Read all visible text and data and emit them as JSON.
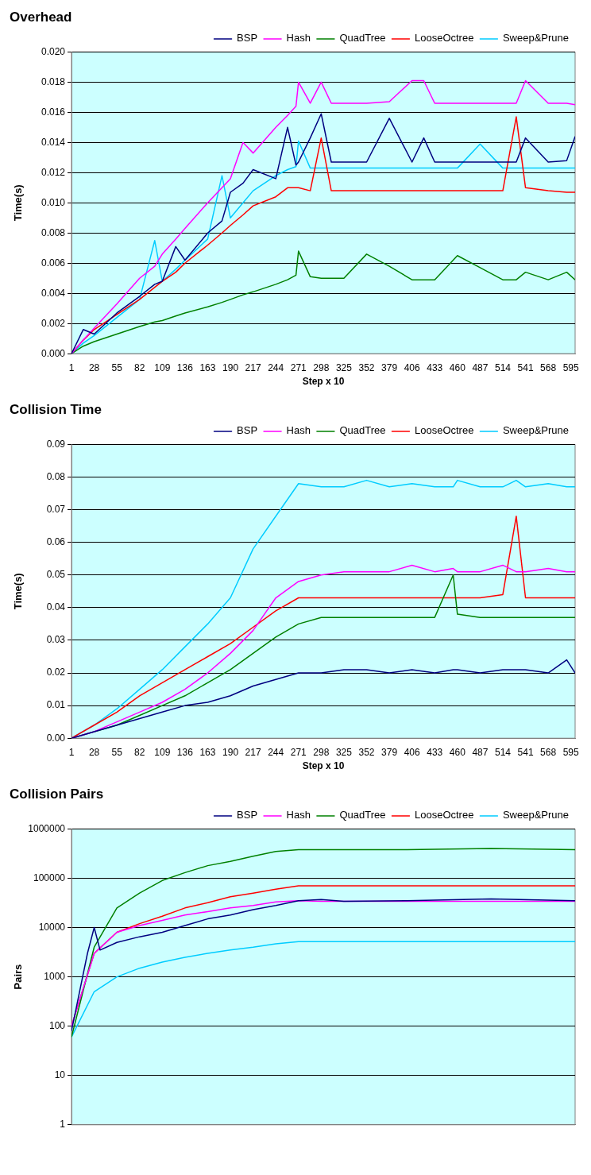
{
  "chart_data": [
    {
      "type": "line",
      "title": "Overhead",
      "xlabel": "Step x 10",
      "ylabel": "Time(s)",
      "legend": "top",
      "grid": "y",
      "marker": "none",
      "x": [
        1,
        15,
        28,
        55,
        82,
        100,
        109,
        125,
        136,
        163,
        180,
        190,
        205,
        217,
        244,
        258,
        268,
        271,
        285,
        298,
        310,
        325,
        352,
        379,
        406,
        420,
        433,
        460,
        487,
        514,
        530,
        541,
        568,
        590,
        600
      ],
      "xlim": [
        1,
        600
      ],
      "xticks": [
        1,
        28,
        55,
        82,
        109,
        136,
        163,
        190,
        217,
        244,
        271,
        298,
        325,
        352,
        379,
        406,
        433,
        460,
        487,
        514,
        541,
        568,
        595
      ],
      "ylim": [
        0,
        0.02
      ],
      "yticks": [
        {
          "value": 0,
          "label": "0.000"
        },
        {
          "value": 0.002,
          "label": "0.002"
        },
        {
          "value": 0.004,
          "label": "0.004"
        },
        {
          "value": 0.006,
          "label": "0.006"
        },
        {
          "value": 0.008,
          "label": "0.008"
        },
        {
          "value": 0.01,
          "label": "0.010"
        },
        {
          "value": 0.012,
          "label": "0.012"
        },
        {
          "value": 0.014,
          "label": "0.014"
        },
        {
          "value": 0.016,
          "label": "0.016"
        },
        {
          "value": 0.018,
          "label": "0.018"
        },
        {
          "value": 0.02,
          "label": "0.020"
        }
      ],
      "series": [
        {
          "name": "BSP",
          "color": "#000080",
          "values": [
            0,
            0.0016,
            0.0013,
            0.0027,
            0.0038,
            0.0046,
            0.0048,
            0.0071,
            0.0062,
            0.008,
            0.0088,
            0.0107,
            0.0113,
            0.0122,
            0.0116,
            0.015,
            0.0125,
            0.0127,
            0.0143,
            0.0159,
            0.0127,
            0.0127,
            0.0127,
            0.0156,
            0.0127,
            0.0143,
            0.0127,
            0.0127,
            0.0127,
            0.0127,
            0.0127,
            0.0143,
            0.0127,
            0.0128,
            0.0144
          ]
        },
        {
          "name": "Hash",
          "color": "#ff00ff",
          "values": [
            0,
            0.0009,
            0.0017,
            0.0033,
            0.005,
            0.0058,
            0.0066,
            0.0076,
            0.0083,
            0.01,
            0.011,
            0.0116,
            0.014,
            0.0133,
            0.015,
            0.0158,
            0.0164,
            0.018,
            0.0166,
            0.018,
            0.0166,
            0.0166,
            0.0166,
            0.0167,
            0.0181,
            0.0181,
            0.0166,
            0.0166,
            0.0166,
            0.0166,
            0.0166,
            0.0181,
            0.0166,
            0.0166,
            0.0165
          ]
        },
        {
          "name": "QuadTree",
          "color": "#008000",
          "values": [
            0,
            0.0005,
            0.0008,
            0.0013,
            0.0018,
            0.0021,
            0.0022,
            0.0025,
            0.0027,
            0.0031,
            0.0034,
            0.0036,
            0.0039,
            0.0041,
            0.0046,
            0.0049,
            0.0052,
            0.0068,
            0.0051,
            0.005,
            0.005,
            0.005,
            0.0066,
            0.0058,
            0.0049,
            0.0049,
            0.0049,
            0.0065,
            0.0057,
            0.0049,
            0.0049,
            0.0054,
            0.0049,
            0.0054,
            0.0049
          ]
        },
        {
          "name": "LooseOctree",
          "color": "#ff0000",
          "values": [
            0,
            0.0009,
            0.0016,
            0.0026,
            0.0036,
            0.0044,
            0.0048,
            0.0054,
            0.006,
            0.0072,
            0.008,
            0.0085,
            0.0092,
            0.0098,
            0.0104,
            0.011,
            0.011,
            0.011,
            0.0108,
            0.0143,
            0.0108,
            0.0108,
            0.0108,
            0.0108,
            0.0108,
            0.0108,
            0.0108,
            0.0108,
            0.0108,
            0.0108,
            0.0157,
            0.011,
            0.0108,
            0.0107,
            0.0107
          ]
        },
        {
          "name": "Sweep&Prune",
          "color": "#00ccff",
          "values": [
            0,
            0.0007,
            0.0012,
            0.0024,
            0.0036,
            0.0075,
            0.0048,
            0.0056,
            0.0062,
            0.0076,
            0.0118,
            0.009,
            0.01,
            0.0108,
            0.0118,
            0.0122,
            0.0124,
            0.0141,
            0.0123,
            0.0123,
            0.0123,
            0.0123,
            0.0123,
            0.0123,
            0.0123,
            0.0123,
            0.0123,
            0.0123,
            0.0139,
            0.0123,
            0.0123,
            0.0123,
            0.0123,
            0.0123,
            0.0123
          ]
        }
      ]
    },
    {
      "type": "line",
      "title": "Collision Time",
      "xlabel": "Step x 10",
      "ylabel": "Time(s)",
      "legend": "top",
      "grid": "y",
      "marker": "none",
      "x": [
        1,
        28,
        55,
        82,
        109,
        136,
        163,
        190,
        217,
        244,
        271,
        298,
        325,
        352,
        379,
        406,
        433,
        455,
        460,
        487,
        514,
        530,
        541,
        568,
        590,
        600
      ],
      "xlim": [
        1,
        600
      ],
      "xticks": [
        1,
        28,
        55,
        82,
        109,
        136,
        163,
        190,
        217,
        244,
        271,
        298,
        325,
        352,
        379,
        406,
        433,
        460,
        487,
        514,
        541,
        568,
        595
      ],
      "ylim": [
        0,
        0.09
      ],
      "yticks": [
        {
          "value": 0,
          "label": "0.00"
        },
        {
          "value": 0.01,
          "label": "0.01"
        },
        {
          "value": 0.02,
          "label": "0.02"
        },
        {
          "value": 0.03,
          "label": "0.03"
        },
        {
          "value": 0.04,
          "label": "0.04"
        },
        {
          "value": 0.05,
          "label": "0.05"
        },
        {
          "value": 0.06,
          "label": "0.06"
        },
        {
          "value": 0.07,
          "label": "0.07"
        },
        {
          "value": 0.08,
          "label": "0.08"
        },
        {
          "value": 0.09,
          "label": "0.09"
        }
      ],
      "series": [
        {
          "name": "BSP",
          "color": "#000080",
          "values": [
            0,
            0.002,
            0.004,
            0.006,
            0.008,
            0.01,
            0.011,
            0.013,
            0.016,
            0.018,
            0.02,
            0.02,
            0.021,
            0.021,
            0.02,
            0.021,
            0.02,
            0.021,
            0.021,
            0.02,
            0.021,
            0.021,
            0.021,
            0.02,
            0.024,
            0.02
          ]
        },
        {
          "name": "Hash",
          "color": "#ff00ff",
          "values": [
            0,
            0.002,
            0.005,
            0.008,
            0.011,
            0.015,
            0.02,
            0.026,
            0.033,
            0.043,
            0.048,
            0.05,
            0.051,
            0.051,
            0.051,
            0.053,
            0.051,
            0.052,
            0.051,
            0.051,
            0.053,
            0.051,
            0.051,
            0.052,
            0.051,
            0.051
          ]
        },
        {
          "name": "QuadTree",
          "color": "#008000",
          "values": [
            0,
            0.002,
            0.004,
            0.007,
            0.01,
            0.013,
            0.017,
            0.021,
            0.026,
            0.031,
            0.035,
            0.037,
            0.037,
            0.037,
            0.037,
            0.037,
            0.037,
            0.05,
            0.038,
            0.037,
            0.037,
            0.037,
            0.037,
            0.037,
            0.037,
            0.037
          ]
        },
        {
          "name": "LooseOctree",
          "color": "#ff0000",
          "values": [
            0,
            0.004,
            0.008,
            0.013,
            0.017,
            0.021,
            0.025,
            0.029,
            0.034,
            0.039,
            0.043,
            0.043,
            0.043,
            0.043,
            0.043,
            0.043,
            0.043,
            0.043,
            0.043,
            0.043,
            0.044,
            0.068,
            0.043,
            0.043,
            0.043,
            0.043
          ]
        },
        {
          "name": "Sweep&Prune",
          "color": "#00ccff",
          "values": [
            0,
            0.004,
            0.009,
            0.015,
            0.021,
            0.028,
            0.035,
            0.043,
            0.058,
            0.068,
            0.078,
            0.077,
            0.077,
            0.079,
            0.077,
            0.078,
            0.077,
            0.077,
            0.079,
            0.077,
            0.077,
            0.079,
            0.077,
            0.078,
            0.077,
            0.077
          ]
        }
      ]
    },
    {
      "type": "line",
      "title": "Collision Pairs",
      "ylabel": "Pairs",
      "legend": "top",
      "grid": "y",
      "marker": "none",
      "log": "y",
      "tick_labels": "y",
      "xlim": [
        1,
        600
      ],
      "ylim": [
        1,
        1000000
      ],
      "yticks": [
        1,
        10,
        100,
        1000,
        10000,
        100000,
        1000000
      ],
      "series": [
        {
          "name": "BSP",
          "color": "#000080",
          "x": [
            1,
            20,
            28,
            35,
            55,
            82,
            109,
            136,
            163,
            190,
            217,
            244,
            271,
            298,
            325,
            400,
            500,
            600
          ],
          "values": [
            80,
            3000,
            10000,
            3500,
            5000,
            6500,
            8000,
            11000,
            15000,
            18000,
            23000,
            28000,
            35000,
            37000,
            34000,
            35000,
            38000,
            35000
          ]
        },
        {
          "name": "Hash",
          "color": "#ff00ff",
          "x": [
            1,
            28,
            55,
            82,
            109,
            136,
            163,
            190,
            217,
            244,
            271,
            298,
            325,
            400,
            500,
            600
          ],
          "values": [
            100,
            3000,
            8000,
            11000,
            14000,
            18000,
            21000,
            25000,
            28000,
            33000,
            35000,
            34000,
            34000,
            34000,
            34000,
            34000
          ]
        },
        {
          "name": "QuadTree",
          "color": "#008000",
          "x": [
            1,
            28,
            55,
            82,
            109,
            136,
            163,
            190,
            217,
            244,
            271,
            298,
            325,
            400,
            500,
            600
          ],
          "values": [
            60,
            4000,
            25000,
            50000,
            90000,
            130000,
            180000,
            220000,
            280000,
            350000,
            380000,
            380000,
            380000,
            380000,
            400000,
            380000
          ]
        },
        {
          "name": "LooseOctree",
          "color": "#ff0000",
          "x": [
            1,
            28,
            55,
            82,
            109,
            136,
            163,
            190,
            217,
            244,
            271,
            298,
            325,
            400,
            500,
            600
          ],
          "values": [
            100,
            3000,
            8000,
            12000,
            17000,
            25000,
            32000,
            42000,
            50000,
            60000,
            70000,
            70000,
            70000,
            70000,
            70000,
            70000
          ]
        },
        {
          "name": "Sweep&Prune",
          "color": "#00ccff",
          "x": [
            1,
            28,
            55,
            82,
            109,
            136,
            163,
            190,
            217,
            244,
            271,
            298,
            325,
            400,
            500,
            600
          ],
          "values": [
            60,
            500,
            1000,
            1500,
            2000,
            2500,
            3000,
            3500,
            4000,
            4700,
            5200,
            5200,
            5200,
            5200,
            5200,
            5200
          ]
        }
      ]
    }
  ]
}
